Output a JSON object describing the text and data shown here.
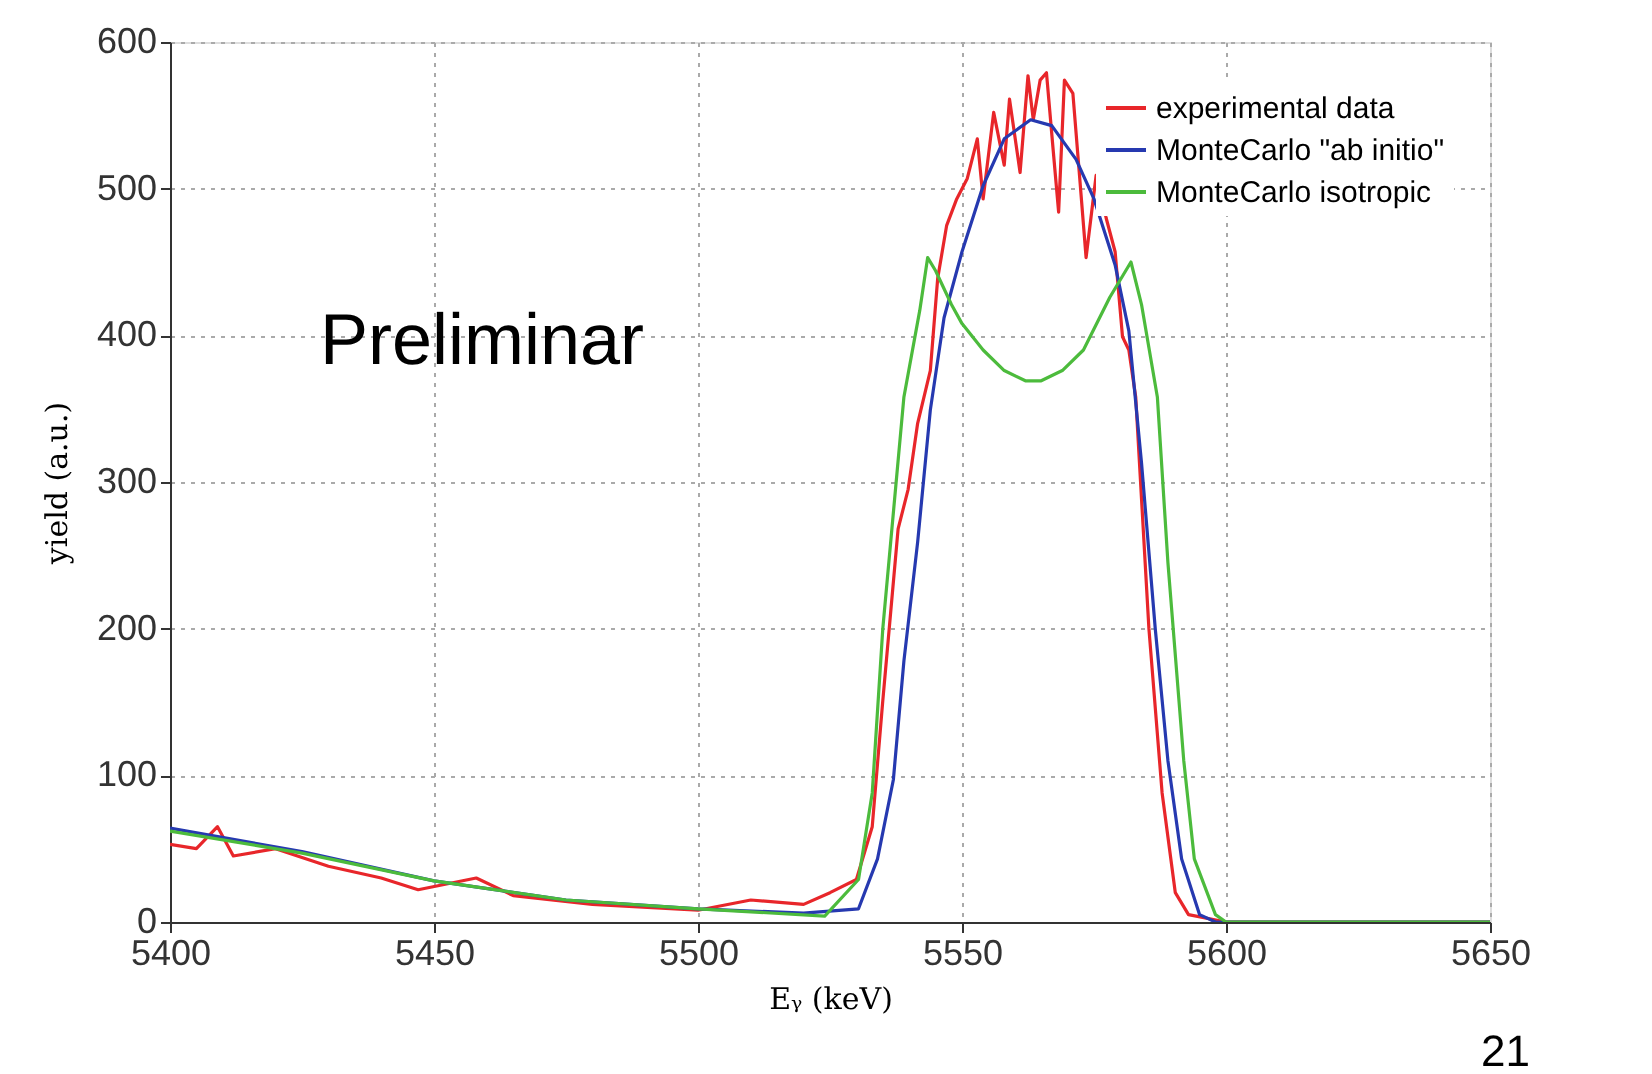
{
  "chart_data": {
    "type": "line",
    "xlabel": "Eᵧ (keV)",
    "ylabel": "yield (a.u.)",
    "xlim": [
      5400,
      5650
    ],
    "xticks": [
      5400,
      5450,
      5500,
      5550,
      5600,
      5650
    ],
    "ylim": [
      0,
      600
    ],
    "yticks": [
      0,
      100,
      200,
      300,
      400,
      500,
      600
    ],
    "grid": true,
    "legend": "top right",
    "line_style": "solid",
    "marker": "none",
    "annotations": [
      "Preliminar",
      "21"
    ],
    "series": [
      {
        "name": "experimental data",
        "color": "#e8262a",
        "x": [
          5400,
          5405,
          5409,
          5412,
          5420,
          5430,
          5440,
          5447,
          5458,
          5465,
          5480,
          5500,
          5510,
          5520,
          5525,
          5530,
          5533,
          5535,
          5537.9,
          5539.8,
          5541.6,
          5544,
          5545.4,
          5547.1,
          5549,
          5551,
          5552.9,
          5554,
          5556,
          5558,
          5559,
          5561,
          5562.5,
          5563.5,
          5564.8,
          5566,
          5567.3,
          5568.3,
          5569.4,
          5571,
          5572.3,
          5573.5,
          5575.4,
          5577.3,
          5579,
          5580.4,
          5581.6,
          5582.9,
          5585.4,
          5587.9,
          5590.4,
          5592.9,
          5600,
          5650
        ],
        "values": [
          53,
          50,
          65,
          45,
          50,
          38,
          30,
          22,
          30,
          18,
          12,
          8,
          15,
          12,
          20,
          29,
          65,
          151,
          268,
          295,
          340,
          376,
          439,
          475,
          493,
          507,
          534,
          493,
          552,
          516,
          561,
          511,
          577,
          547,
          574,
          579,
          525,
          484,
          574,
          565,
          507,
          453,
          509,
          480,
          457,
          399,
          390,
          358,
          200,
          88,
          20,
          5,
          0,
          0
        ]
      },
      {
        "name": "MonteCarlo \"ab initio\"",
        "color": "#2639b0",
        "x": [
          5400,
          5425,
          5450,
          5475,
          5500,
          5520,
          5530.4,
          5534,
          5537,
          5539,
          5541.6,
          5544,
          5546.6,
          5550,
          5554,
          5558,
          5563,
          5567,
          5571.6,
          5575,
          5579,
          5581.6,
          5584,
          5586.6,
          5589,
          5591.6,
          5595,
          5598,
          5650
        ],
        "values": [
          64,
          48,
          28,
          15,
          9,
          6,
          9,
          43,
          97,
          178,
          259,
          349,
          412,
          457,
          502,
          534,
          547,
          543,
          520,
          493,
          448,
          403,
          313,
          200,
          110,
          43,
          5,
          0,
          0
        ]
      },
      {
        "name": "MonteCarlo  isotropic",
        "color": "#4cbb3c",
        "x": [
          5400,
          5425,
          5450,
          5475,
          5500,
          5524,
          5530.4,
          5533,
          5535,
          5539,
          5542,
          5543.5,
          5545,
          5548,
          5550,
          5554,
          5558,
          5562,
          5565,
          5569,
          5573,
          5578,
          5582,
          5584,
          5587,
          5589,
          5592,
          5594,
          5598,
          5600,
          5650
        ],
        "values": [
          62,
          47,
          28,
          15,
          9,
          4,
          29,
          88,
          200,
          358,
          417,
          453,
          444,
          421,
          408,
          390,
          376,
          369,
          369,
          376,
          390,
          426,
          450,
          421,
          358,
          245,
          110,
          43,
          5,
          0,
          0
        ]
      }
    ]
  }
}
